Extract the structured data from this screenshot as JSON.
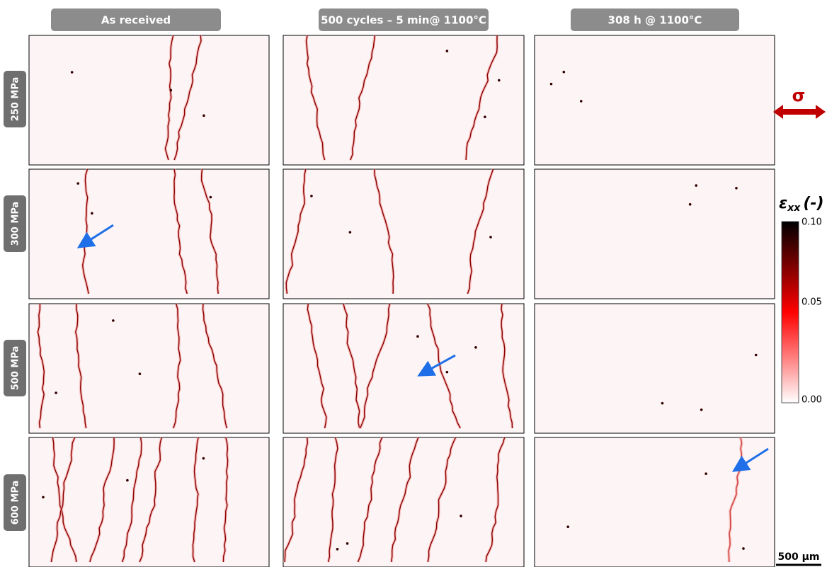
{
  "columns": [
    "As received",
    "500 cycles – 5 min@ 1100°C",
    "308 h @ 1100°C"
  ],
  "rows": [
    "250 MPa",
    "300 MPa",
    "500 MPa",
    "600 MPa"
  ],
  "load": "σ",
  "colorbar": {
    "symbol": "ε",
    "subscript": "xx",
    "unit": "(-)",
    "ticks": [
      "0.10",
      "0.05",
      "0.00"
    ]
  },
  "scale_bar": "500 µm"
}
